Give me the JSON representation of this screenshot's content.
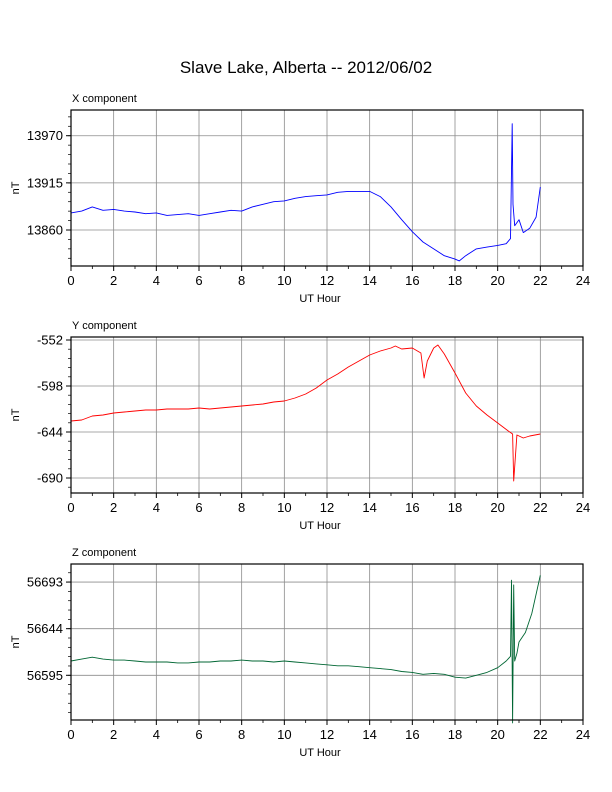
{
  "title": "Slave Lake, Alberta -- 2012/06/02",
  "chart_data": [
    {
      "type": "line",
      "title": "X component",
      "xlabel": "UT Hour",
      "ylabel": "nT",
      "xlim": [
        0,
        24
      ],
      "ylim": [
        13818,
        14000
      ],
      "xticks": [
        0,
        2,
        4,
        6,
        8,
        10,
        12,
        14,
        16,
        18,
        20,
        22,
        24
      ],
      "yticks": [
        13860,
        13915,
        13970
      ],
      "color": "#0000ff",
      "grid": true,
      "series": [
        {
          "x": [
            0,
            0.5,
            1,
            1.5,
            2,
            2.5,
            3,
            3.5,
            4,
            4.5,
            5,
            5.5,
            6,
            6.5,
            7,
            7.5,
            8,
            8.5,
            9,
            9.5,
            10,
            10.5,
            11,
            11.5,
            12,
            12.5,
            13,
            13.5,
            14,
            14.5,
            15,
            15.5,
            16,
            16.5,
            17,
            17.5,
            18,
            18.2,
            18.5,
            19,
            19.5,
            20,
            20.4,
            20.6,
            20.68,
            20.72,
            20.8,
            21,
            21.2,
            21.5,
            21.8,
            22
          ],
          "values": [
            13880,
            13882,
            13887,
            13883,
            13884,
            13882,
            13881,
            13879,
            13880,
            13877,
            13878,
            13879,
            13877,
            13879,
            13881,
            13883,
            13882,
            13887,
            13890,
            13893,
            13894,
            13897,
            13899,
            13900,
            13901,
            13904,
            13905,
            13905,
            13905,
            13899,
            13887,
            13872,
            13858,
            13846,
            13838,
            13830,
            13826,
            13824,
            13830,
            13838,
            13840,
            13842,
            13844,
            13850,
            13984,
            13890,
            13865,
            13872,
            13857,
            13862,
            13875,
            13910
          ]
        }
      ]
    },
    {
      "type": "line",
      "title": "Y component",
      "xlabel": "UT Hour",
      "ylabel": "nT",
      "xlim": [
        0,
        24
      ],
      "ylim": [
        -705,
        -549
      ],
      "xticks": [
        0,
        2,
        4,
        6,
        8,
        10,
        12,
        14,
        16,
        18,
        20,
        22,
        24
      ],
      "yticks": [
        -690,
        -644,
        -598,
        -552
      ],
      "color": "#ff0000",
      "grid": true,
      "series": [
        {
          "x": [
            0,
            0.5,
            1,
            1.5,
            2,
            2.5,
            3,
            3.5,
            4,
            4.5,
            5,
            5.5,
            6,
            6.5,
            7,
            7.5,
            8,
            8.5,
            9,
            9.5,
            10,
            10.5,
            11,
            11.5,
            12,
            12.5,
            13,
            13.5,
            14,
            14.5,
            15,
            15.2,
            15.5,
            16,
            16.4,
            16.55,
            16.7,
            17,
            17.2,
            17.5,
            18,
            18.5,
            19,
            19.5,
            20,
            20.5,
            20.7,
            20.75,
            20.9,
            21.2,
            21.5,
            22
          ],
          "values": [
            -633,
            -632,
            -628,
            -627,
            -625,
            -624,
            -623,
            -622,
            -622,
            -621,
            -621,
            -621,
            -620,
            -621,
            -620,
            -619,
            -618,
            -617,
            -616,
            -614,
            -613,
            -610,
            -606,
            -600,
            -592,
            -586,
            -579,
            -573,
            -567,
            -563,
            -560,
            -558,
            -561,
            -560,
            -565,
            -590,
            -573,
            -560,
            -557,
            -566,
            -585,
            -605,
            -618,
            -627,
            -635,
            -643,
            -646,
            -693,
            -647,
            -650,
            -648,
            -646
          ]
        }
      ]
    },
    {
      "type": "line",
      "title": "Z component",
      "xlabel": "UT Hour",
      "ylabel": "nT",
      "xlim": [
        0,
        24
      ],
      "ylim": [
        56548,
        56712
      ],
      "xticks": [
        0,
        2,
        4,
        6,
        8,
        10,
        12,
        14,
        16,
        18,
        20,
        22,
        24
      ],
      "yticks": [
        56595,
        56644,
        56693
      ],
      "color": "#006633",
      "grid": true,
      "series": [
        {
          "x": [
            0,
            0.5,
            1,
            1.5,
            2,
            2.5,
            3,
            3.5,
            4,
            4.5,
            5,
            5.5,
            6,
            6.5,
            7,
            7.5,
            8,
            8.5,
            9,
            9.5,
            10,
            10.5,
            11,
            11.5,
            12,
            12.5,
            13,
            13.5,
            14,
            14.5,
            15,
            15.5,
            16,
            16.5,
            17,
            17.5,
            18,
            18.5,
            19,
            19.5,
            20,
            20.4,
            20.6,
            20.65,
            20.7,
            20.75,
            20.8,
            20.9,
            21,
            21.3,
            21.6,
            22
          ],
          "values": [
            56610,
            56612,
            56614,
            56612,
            56611,
            56611,
            56610,
            56609,
            56609,
            56609,
            56608,
            56608,
            56609,
            56609,
            56610,
            56610,
            56611,
            56610,
            56610,
            56609,
            56610,
            56609,
            56608,
            56607,
            56606,
            56605,
            56605,
            56604,
            56603,
            56602,
            56601,
            56599,
            56598,
            56596,
            56597,
            56596,
            56593,
            56592,
            56595,
            56598,
            56603,
            56610,
            56615,
            56695,
            56545,
            56690,
            56610,
            56618,
            56630,
            56640,
            56660,
            56700
          ]
        }
      ]
    }
  ]
}
